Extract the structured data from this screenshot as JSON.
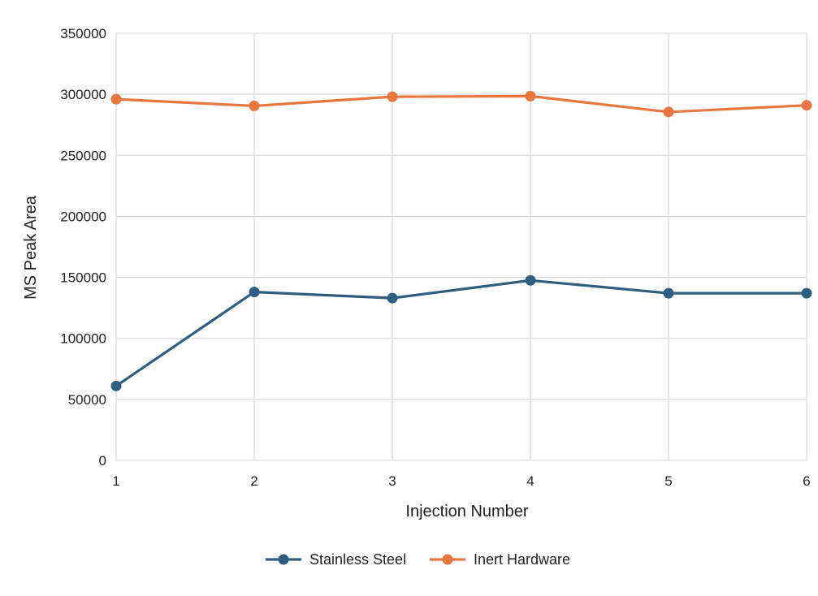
{
  "chart_data": {
    "type": "line",
    "title": "",
    "xlabel": "Injection Number",
    "ylabel": "MS Peak Area",
    "x": [
      1,
      2,
      3,
      4,
      5,
      6
    ],
    "xlim": [
      1,
      6
    ],
    "ylim": [
      0,
      350000
    ],
    "yticks": [
      0,
      50000,
      100000,
      150000,
      200000,
      250000,
      300000,
      350000
    ],
    "grid": true,
    "legend_position": "bottom-center",
    "series": [
      {
        "name": "Stainless Steel",
        "color": "#2e5f80",
        "values": [
          61000,
          138000,
          133000,
          147500,
          137000,
          137000
        ]
      },
      {
        "name": "Inert Hardware",
        "color": "#e8773f",
        "values": [
          296000,
          290500,
          298000,
          298500,
          285500,
          291000
        ]
      }
    ]
  }
}
